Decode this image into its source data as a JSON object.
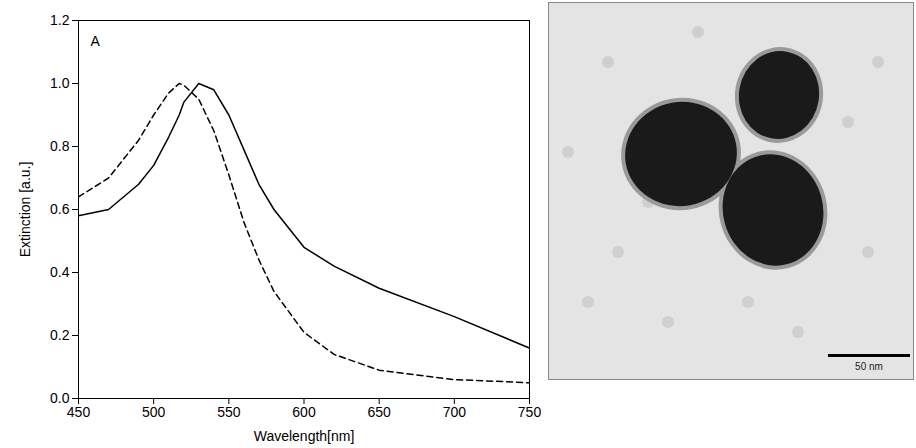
{
  "chart_data": {
    "type": "line",
    "annotations": [
      "A"
    ],
    "x_label": "Wavelength[nm]",
    "y_label": "Extinction [a.u.]",
    "x": [
      450,
      470,
      490,
      500,
      510,
      517,
      520,
      530,
      540,
      550,
      560,
      570,
      580,
      600,
      620,
      650,
      700,
      750
    ],
    "series": [
      {
        "color": "#000000",
        "line_style": "solid",
        "values": [
          0.58,
          0.6,
          0.68,
          0.74,
          0.83,
          0.9,
          0.94,
          1.0,
          0.98,
          0.9,
          0.79,
          0.68,
          0.6,
          0.48,
          0.42,
          0.35,
          0.26,
          0.16
        ]
      },
      {
        "color": "#000000",
        "line_style": "dashed",
        "values": [
          0.64,
          0.7,
          0.82,
          0.9,
          0.97,
          1.0,
          0.995,
          0.95,
          0.85,
          0.71,
          0.56,
          0.44,
          0.34,
          0.21,
          0.14,
          0.09,
          0.06,
          0.05
        ]
      }
    ],
    "xlim": [
      450,
      750
    ],
    "xticks": [
      450,
      500,
      550,
      600,
      650,
      700,
      750
    ],
    "ylim": [
      0.0,
      1.2
    ],
    "yticks": [
      {
        "value": 0.0,
        "label": "0.0"
      },
      {
        "value": 0.2,
        "label": "0.2"
      },
      {
        "value": 0.4,
        "label": "0.4"
      },
      {
        "value": 0.6,
        "label": "0.6"
      },
      {
        "value": 0.8,
        "label": "0.8"
      },
      {
        "value": 1.0,
        "label": "1.0"
      },
      {
        "value": 1.2,
        "label": "1.2"
      }
    ],
    "grid": false
  },
  "image": {
    "scale_bar_label": "50 nm"
  }
}
